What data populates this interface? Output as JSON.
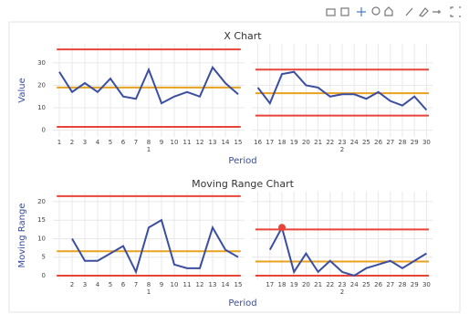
{
  "chart_data": [
    {
      "type": "line",
      "title": "X Chart",
      "y_label": "Value",
      "x_label": "Period",
      "ylim": [
        -3,
        38.5
      ],
      "yticks": [
        0,
        10,
        20,
        30
      ],
      "grid": true,
      "line_color": "#3b4ea0",
      "limit_color": "#e8453a",
      "center_color": "#e8a21f",
      "groups": [
        {
          "name": "1",
          "xlim": [
            0.5,
            15.5
          ],
          "x": [
            1,
            2,
            3,
            4,
            5,
            6,
            7,
            8,
            9,
            10,
            11,
            12,
            13,
            14,
            15
          ],
          "values": [
            26,
            17,
            21,
            17,
            23,
            15,
            14,
            27,
            12,
            15,
            17,
            15,
            28,
            21,
            16
          ],
          "ucl": 36,
          "center": 19,
          "lcl": 1.5
        },
        {
          "name": "2",
          "xlim": [
            15.5,
            30.5
          ],
          "x": [
            16,
            17,
            18,
            19,
            20,
            21,
            22,
            23,
            24,
            25,
            26,
            27,
            28,
            29,
            30
          ],
          "values": [
            19,
            12,
            25,
            26,
            20,
            19,
            15,
            16,
            16,
            14,
            17,
            13,
            11,
            15,
            9
          ],
          "ucl": 27,
          "center": 16.5,
          "lcl": 6.5
        }
      ]
    },
    {
      "type": "line",
      "title": "Moving Range Chart",
      "y_label": "Moving Range",
      "x_label": "Period",
      "ylim": [
        -1,
        22.7
      ],
      "yticks": [
        0,
        5,
        10,
        15,
        20
      ],
      "grid": true,
      "line_color": "#3b4ea0",
      "limit_color": "#e8453a",
      "center_color": "#e8a21f",
      "groups": [
        {
          "name": "1",
          "xlim": [
            0.5,
            15.5
          ],
          "x": [
            2,
            3,
            4,
            5,
            6,
            7,
            8,
            9,
            10,
            11,
            12,
            13,
            14,
            15
          ],
          "values": [
            10,
            4,
            4,
            6,
            8,
            1,
            13,
            15,
            3,
            2,
            2,
            13,
            7,
            5
          ],
          "ucl": 21.5,
          "center": 6.6,
          "lcl": 0
        },
        {
          "name": "2",
          "xlim": [
            15.5,
            30.5
          ],
          "x": [
            17,
            18,
            19,
            20,
            21,
            22,
            23,
            24,
            25,
            26,
            27,
            28,
            29,
            30
          ],
          "values": [
            7,
            13,
            1,
            6,
            1,
            4,
            1,
            0,
            2,
            3,
            4,
            2,
            4,
            6
          ],
          "ucl": 12.5,
          "center": 3.8,
          "lcl": 0
        }
      ]
    }
  ]
}
